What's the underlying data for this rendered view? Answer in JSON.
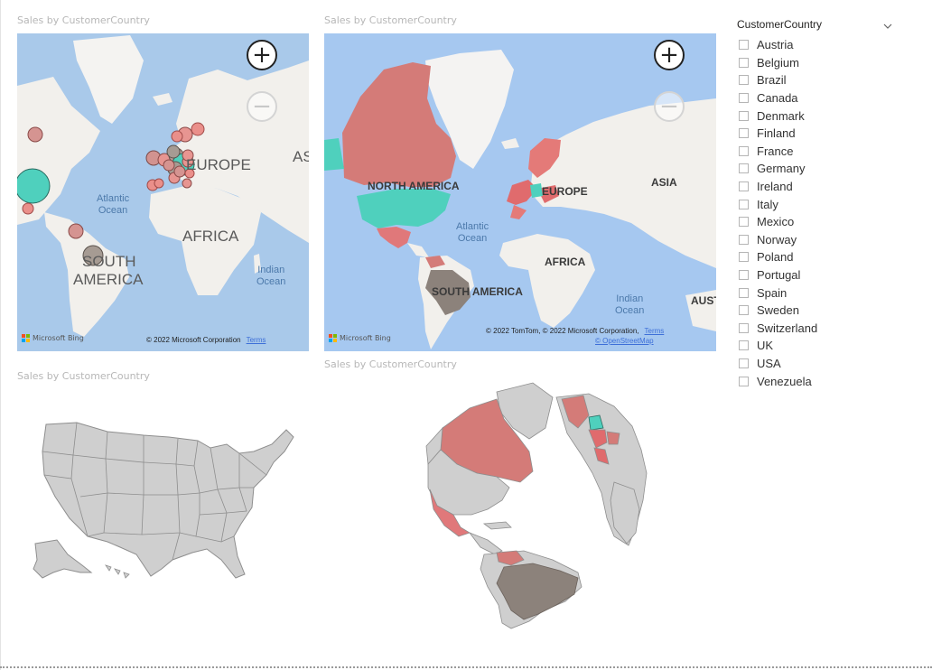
{
  "visuals": {
    "topleft": {
      "title": "Sales by CustomerCountry"
    },
    "topright": {
      "title": "Sales by CustomerCountry"
    },
    "bottomleft": {
      "title": "Sales by CustomerCountry"
    },
    "bottomright": {
      "title": "Sales by CustomerCountry"
    }
  },
  "map_labels": {
    "europe_left": "EUROPE",
    "as_left": "AS",
    "africa_left": "AFRICA",
    "south_america_left_1": "SOUTH",
    "south_america_left_2": "AMERICA",
    "atlantic_left": "Atlantic\nOcean",
    "indian_left": "Indian\nOcean",
    "north_america": "NORTH AMERICA",
    "europe_right": "EUROPE",
    "asia_right": "ASIA",
    "africa_right": "AFRICA",
    "south_america_right": "SOUTH AMERICA",
    "atlantic_right": "Atlantic\nOcean",
    "indian_right": "Indian\nOcean",
    "aust_right": "AUST"
  },
  "attribution": {
    "bing": "Microsoft Bing",
    "copy_left": "© 2022 Microsoft Corporation",
    "copy_right": "© 2022 TomTom, © 2022 Microsoft Corporation,",
    "osm": "© OpenStreetMap",
    "terms": "Terms"
  },
  "zoom": {
    "in_symbol": "+",
    "out_symbol": "−"
  },
  "colors": {
    "accent_red": "#e26c6c",
    "accent_teal": "#4fd0bd",
    "gray_brown": "#8c827b",
    "land": "#f2f0ec",
    "water": "#a8c8ec"
  },
  "slicer": {
    "title": "CustomerCountry",
    "icon": "chevron-down-icon",
    "options": [
      "Austria",
      "Belgium",
      "Brazil",
      "Canada",
      "Denmark",
      "Finland",
      "France",
      "Germany",
      "Ireland",
      "Italy",
      "Mexico",
      "Norway",
      "Poland",
      "Portugal",
      "Spain",
      "Sweden",
      "Switzerland",
      "UK",
      "USA",
      "Venezuela"
    ]
  }
}
